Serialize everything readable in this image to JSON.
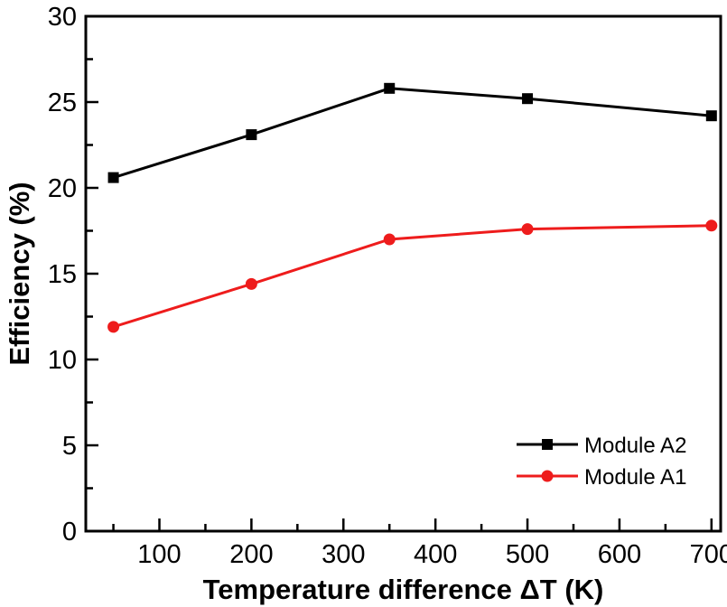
{
  "chart_data": {
    "type": "line",
    "title": "",
    "xlabel": "Temperature difference ΔT (K)",
    "ylabel": "Efficiency (%)",
    "xlim": [
      20,
      710
    ],
    "ylim": [
      0,
      30
    ],
    "x_ticks": [
      100,
      200,
      300,
      400,
      500,
      600,
      700
    ],
    "x_minor_ticks": [
      50,
      150,
      250,
      350,
      450,
      550,
      650
    ],
    "y_ticks": [
      0,
      5,
      10,
      15,
      20,
      25,
      30
    ],
    "y_minor_ticks": [
      2.5,
      7.5,
      12.5,
      17.5,
      22.5,
      27.5
    ],
    "grid": false,
    "legend_position": "bottom-right",
    "series": [
      {
        "name": "Module A2",
        "color": "#000000",
        "marker": "square",
        "x": [
          50,
          200,
          350,
          500,
          700
        ],
        "y": [
          20.6,
          23.1,
          25.8,
          25.2,
          24.2
        ]
      },
      {
        "name": "Module A1",
        "color": "#ee1c1c",
        "marker": "circle",
        "x": [
          50,
          200,
          350,
          500,
          700
        ],
        "y": [
          11.9,
          14.4,
          17.0,
          17.6,
          17.8
        ]
      }
    ]
  }
}
